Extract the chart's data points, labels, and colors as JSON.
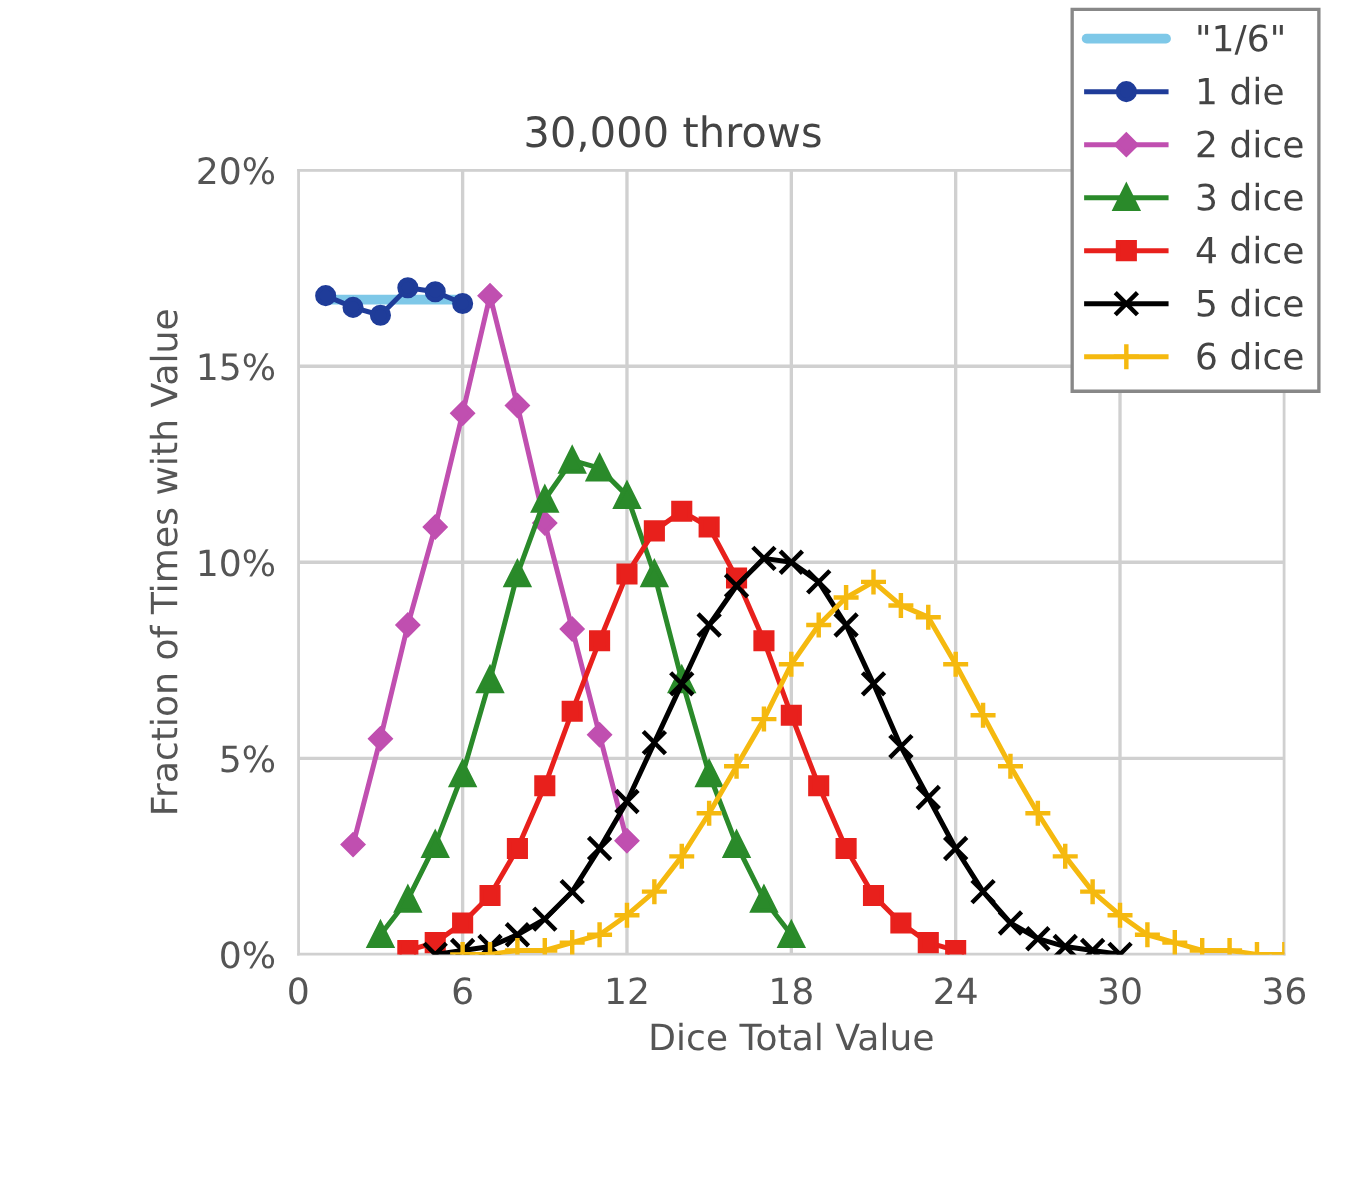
{
  "chart_data": {
    "type": "line",
    "title": "30,000 throws",
    "xlabel": "Dice Total Value",
    "ylabel": "Fraction of Times with Value",
    "xlim": [
      0,
      36
    ],
    "xticks": [
      0,
      6,
      12,
      18,
      24,
      30,
      36
    ],
    "ylim": [
      0,
      20
    ],
    "yticks": [
      {
        "value": 0,
        "label": "0%"
      },
      {
        "value": 5,
        "label": "5%"
      },
      {
        "value": 10,
        "label": "10%"
      },
      {
        "value": 15,
        "label": "15%"
      },
      {
        "value": 20,
        "label": "20%"
      }
    ],
    "grid": true,
    "legend": "top right",
    "series": [
      {
        "name": "\"1/6\"",
        "color": "#7ec8e8",
        "marker": "none",
        "x": [
          1,
          6
        ],
        "values": [
          16.7,
          16.7
        ]
      },
      {
        "name": "1 die",
        "color": "#1f3c99",
        "marker": "circle",
        "x": [
          1,
          2,
          3,
          4,
          5,
          6
        ],
        "values": [
          16.8,
          16.5,
          16.3,
          17.0,
          16.9,
          16.6
        ]
      },
      {
        "name": "2 dice",
        "color": "#c04fb0",
        "marker": "diamond",
        "x": [
          2,
          3,
          4,
          5,
          6,
          7,
          8,
          9,
          10,
          11,
          12
        ],
        "values": [
          2.8,
          5.5,
          8.4,
          10.9,
          13.8,
          16.8,
          14.0,
          11.0,
          8.3,
          5.6,
          2.9
        ]
      },
      {
        "name": "3 dice",
        "color": "#2a8a2a",
        "marker": "triangle",
        "x": [
          3,
          4,
          5,
          6,
          7,
          8,
          9,
          10,
          11,
          12,
          13,
          14,
          15,
          16,
          17,
          18
        ],
        "values": [
          0.5,
          1.4,
          2.8,
          4.6,
          7.0,
          9.7,
          11.6,
          12.6,
          12.4,
          11.7,
          9.7,
          7.0,
          4.6,
          2.8,
          1.4,
          0.5
        ]
      },
      {
        "name": "4 dice",
        "color": "#e8201c",
        "marker": "square",
        "x": [
          4,
          5,
          6,
          7,
          8,
          9,
          10,
          11,
          12,
          13,
          14,
          15,
          16,
          17,
          18,
          19,
          20,
          21,
          22,
          23,
          24
        ],
        "values": [
          0.1,
          0.3,
          0.8,
          1.5,
          2.7,
          4.3,
          6.2,
          8.0,
          9.7,
          10.8,
          11.3,
          10.9,
          9.6,
          8.0,
          6.1,
          4.3,
          2.7,
          1.5,
          0.8,
          0.3,
          0.1
        ]
      },
      {
        "name": "5 dice",
        "color": "#000000",
        "marker": "cross",
        "x": [
          5,
          6,
          7,
          8,
          9,
          10,
          11,
          12,
          13,
          14,
          15,
          16,
          17,
          18,
          19,
          20,
          21,
          22,
          23,
          24,
          25,
          26,
          27,
          28,
          29,
          30
        ],
        "values": [
          0.0,
          0.1,
          0.2,
          0.5,
          0.9,
          1.6,
          2.7,
          3.9,
          5.4,
          6.9,
          8.4,
          9.4,
          10.1,
          10.0,
          9.5,
          8.4,
          6.9,
          5.3,
          4.0,
          2.7,
          1.6,
          0.8,
          0.4,
          0.2,
          0.1,
          0.0
        ]
      },
      {
        "name": "6 dice",
        "color": "#f5b90f",
        "marker": "plus",
        "x": [
          6,
          7,
          8,
          9,
          10,
          11,
          12,
          13,
          14,
          15,
          16,
          17,
          18,
          19,
          20,
          21,
          22,
          23,
          24,
          25,
          26,
          27,
          28,
          29,
          30,
          31,
          32,
          33,
          34,
          35,
          36
        ],
        "values": [
          0.0,
          0.0,
          0.1,
          0.1,
          0.3,
          0.5,
          1.0,
          1.6,
          2.5,
          3.6,
          4.8,
          6.0,
          7.4,
          8.4,
          9.1,
          9.5,
          8.9,
          8.6,
          7.4,
          6.1,
          4.8,
          3.6,
          2.5,
          1.6,
          1.0,
          0.5,
          0.3,
          0.1,
          0.1,
          0.0,
          0.0
        ]
      }
    ]
  }
}
